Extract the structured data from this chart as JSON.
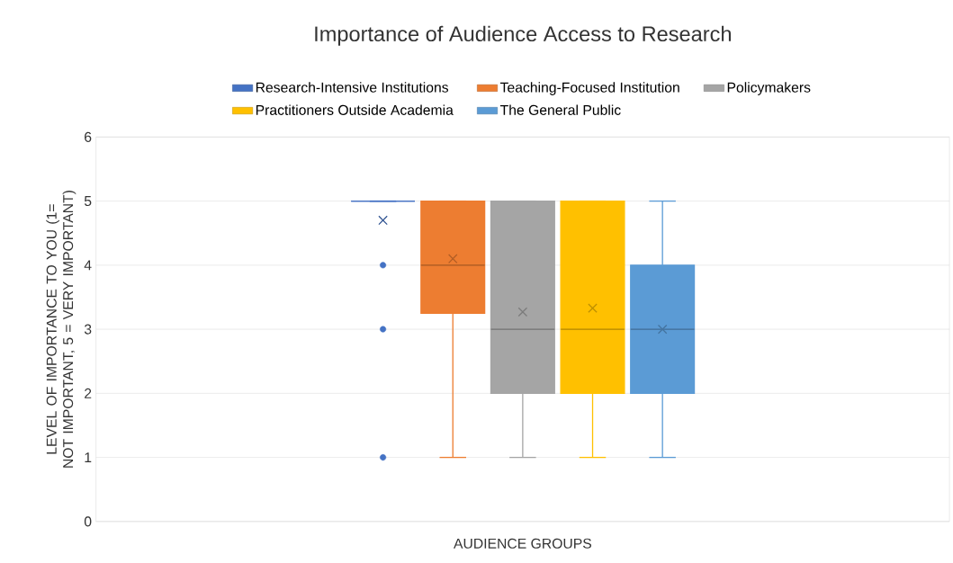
{
  "chart_data": {
    "type": "box",
    "title": "Importance of Audience Access to Research",
    "xlabel": "AUDIENCE GROUPS",
    "ylabel": "LEVEL OF IMPORTANCE TO YOU (1= NOT IMPORTANT, 5 = VERY IMPORTANT)",
    "categories": [
      null
    ],
    "series": [
      {
        "name": "Research-Intensive Institutions",
        "color": "#4472c4",
        "boxes": [
          {
            "low": 5,
            "q1": 5,
            "median": 5,
            "q3": 5,
            "high": 5,
            "mean": 4.7,
            "outliers": [
              4,
              3,
              1
            ]
          }
        ]
      },
      {
        "name": "Teaching-Focused Institution",
        "color": "#ed7d31",
        "boxes": [
          {
            "low": 1,
            "q1": 3.25,
            "median": 4,
            "q3": 5,
            "high": 5,
            "mean": 4.1
          }
        ]
      },
      {
        "name": "Policymakers",
        "color": "#a5a5a5",
        "boxes": [
          {
            "low": 1,
            "q1": 2,
            "median": 3,
            "q3": 5,
            "high": 5,
            "mean": 3.27
          }
        ]
      },
      {
        "name": "Practitioners Outside Academia",
        "color": "#ffc000",
        "boxes": [
          {
            "low": 1,
            "q1": 2,
            "median": 3,
            "q3": 5,
            "high": 5,
            "mean": 3.33
          }
        ]
      },
      {
        "name": "The General Public",
        "color": "#5b9bd5",
        "boxes": [
          {
            "low": 1,
            "q1": 2,
            "median": 3,
            "q3": 4,
            "high": 5,
            "mean": 3
          }
        ]
      }
    ],
    "ylim": [
      0,
      6
    ],
    "yticks": [
      0,
      1,
      2,
      3,
      4,
      5,
      6
    ],
    "grid": "y",
    "legend": "top"
  }
}
